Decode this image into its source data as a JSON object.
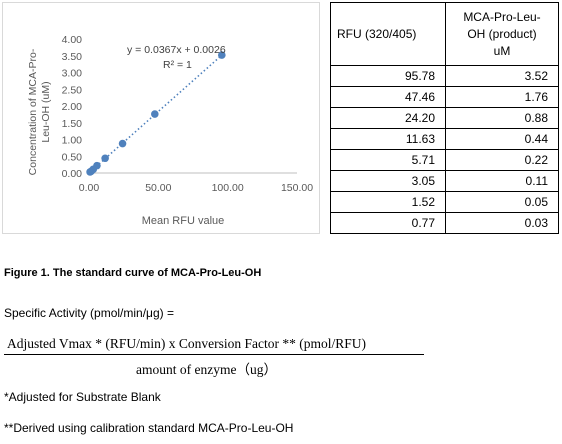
{
  "chart_data": {
    "type": "scatter",
    "x": [
      95.78,
      47.46,
      24.2,
      11.63,
      5.71,
      3.05,
      1.52,
      0.77
    ],
    "y": [
      3.52,
      1.76,
      0.88,
      0.44,
      0.22,
      0.11,
      0.05,
      0.03
    ],
    "xlabel": "Mean RFU value",
    "ylabel": "Concentration of MCA-Pro-Leu-OH (uM)",
    "xlim": [
      0,
      150
    ],
    "ylim": [
      0,
      4
    ],
    "x_ticks": [
      "0.00",
      "50.00",
      "100.00",
      "150.00"
    ],
    "y_ticks": [
      "0.00",
      "0.50",
      "1.00",
      "1.50",
      "2.00",
      "2.50",
      "3.00",
      "3.50",
      "4.00"
    ],
    "trendline": {
      "type": "linear",
      "slope": 0.0367,
      "intercept": 0.0026,
      "style": "dotted"
    },
    "equation_label": "y = 0.0367x + 0.0026",
    "r2_label": "R² = 1",
    "marker_color": "#4f81bd",
    "grid": false,
    "legend": "none"
  },
  "table": {
    "headers": [
      "RFU (320/405)",
      "MCA-Pro-Leu-OH (product) uM"
    ],
    "header2_lines": [
      "MCA-Pro-Leu-",
      "OH (product)",
      "uM"
    ],
    "rows": [
      [
        "95.78",
        "3.52"
      ],
      [
        "47.46",
        "1.76"
      ],
      [
        "24.20",
        "0.88"
      ],
      [
        "11.63",
        "0.44"
      ],
      [
        "5.71",
        "0.22"
      ],
      [
        "3.05",
        "0.11"
      ],
      [
        "1.52",
        "0.05"
      ],
      [
        "0.77",
        "0.03"
      ]
    ]
  },
  "caption": "Figure 1. The standard curve of MCA-Pro-Leu-OH",
  "specific_activity_label": "Specific Activity (pmol/min/μg) =",
  "formula": {
    "numerator": "Adjusted Vmax * (RFU/min) x Conversion Factor ** (pmol/RFU)",
    "denominator": "amount of enzyme（ug）"
  },
  "notes": [
    "*Adjusted for Substrate Blank",
    "**Derived using calibration standard MCA-Pro-Leu-OH"
  ]
}
